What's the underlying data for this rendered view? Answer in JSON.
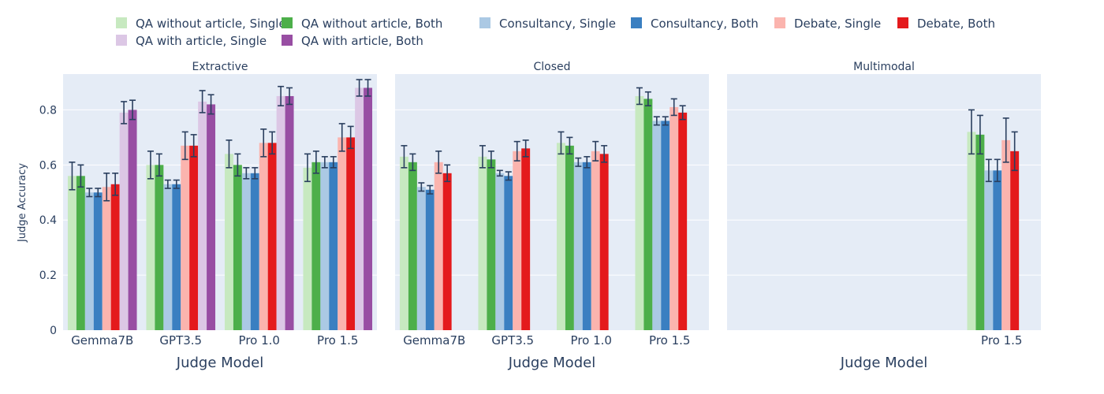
{
  "chart_data": {
    "type": "bar",
    "ylabel": "Judge Accuracy",
    "ylim": [
      0,
      0.93
    ],
    "yticks": [
      0,
      0.2,
      0.4,
      0.6,
      0.8
    ],
    "grid": true,
    "legend_position": "top",
    "series": [
      {
        "name": "QA without article, Single",
        "color": "#c7e9c0"
      },
      {
        "name": "QA without article, Both",
        "color": "#4daf4a"
      },
      {
        "name": "Consultancy, Single",
        "color": "#abc9e4"
      },
      {
        "name": "Consultancy, Both",
        "color": "#3a7fc1"
      },
      {
        "name": "Debate, Single",
        "color": "#fbb4ae"
      },
      {
        "name": "Debate, Both",
        "color": "#e41a1c"
      },
      {
        "name": "QA with article, Single",
        "color": "#dcc7e5"
      },
      {
        "name": "QA with article, Both",
        "color": "#984ea3"
      }
    ],
    "panels": [
      {
        "title": "Extractive",
        "xlabel": "Judge Model",
        "categories": [
          "Gemma7B",
          "GPT3.5",
          "Pro 1.0",
          "Pro 1.5"
        ],
        "values": [
          [
            0.56,
            0.6,
            0.64,
            0.59
          ],
          [
            0.56,
            0.6,
            0.6,
            0.61
          ],
          [
            0.5,
            0.53,
            0.57,
            0.61
          ],
          [
            0.5,
            0.53,
            0.57,
            0.61
          ],
          [
            0.52,
            0.67,
            0.68,
            0.7
          ],
          [
            0.53,
            0.67,
            0.68,
            0.7
          ],
          [
            0.79,
            0.83,
            0.85,
            0.88
          ],
          [
            0.8,
            0.82,
            0.85,
            0.88
          ]
        ],
        "errors": [
          [
            0.05,
            0.05,
            0.05,
            0.05
          ],
          [
            0.04,
            0.04,
            0.04,
            0.04
          ],
          [
            0.015,
            0.015,
            0.02,
            0.02
          ],
          [
            0.015,
            0.015,
            0.02,
            0.02
          ],
          [
            0.05,
            0.05,
            0.05,
            0.05
          ],
          [
            0.04,
            0.04,
            0.04,
            0.04
          ],
          [
            0.04,
            0.04,
            0.035,
            0.03
          ],
          [
            0.035,
            0.035,
            0.03,
            0.03
          ]
        ]
      },
      {
        "title": "Closed",
        "xlabel": "Judge Model",
        "categories": [
          "Gemma7B",
          "GPT3.5",
          "Pro 1.0",
          "Pro 1.5"
        ],
        "values": [
          [
            0.63,
            0.63,
            0.68,
            0.85
          ],
          [
            0.61,
            0.62,
            0.67,
            0.84
          ],
          [
            0.52,
            0.57,
            0.61,
            0.76
          ],
          [
            0.51,
            0.56,
            0.61,
            0.76
          ],
          [
            0.61,
            0.65,
            0.65,
            0.81
          ],
          [
            0.57,
            0.66,
            0.64,
            0.79
          ],
          [
            null,
            null,
            null,
            null
          ],
          [
            null,
            null,
            null,
            null
          ]
        ],
        "errors": [
          [
            0.04,
            0.04,
            0.04,
            0.03
          ],
          [
            0.03,
            0.03,
            0.03,
            0.025
          ],
          [
            0.015,
            0.01,
            0.015,
            0.015
          ],
          [
            0.015,
            0.015,
            0.02,
            0.015
          ],
          [
            0.04,
            0.035,
            0.035,
            0.03
          ],
          [
            0.03,
            0.03,
            0.03,
            0.025
          ],
          [
            null,
            null,
            null,
            null
          ],
          [
            null,
            null,
            null,
            null
          ]
        ]
      },
      {
        "title": "Multimodal",
        "xlabel": "Judge Model",
        "categories": [
          "Pro 1.5"
        ],
        "values": [
          [
            0.72
          ],
          [
            0.71
          ],
          [
            0.58
          ],
          [
            0.58
          ],
          [
            0.69
          ],
          [
            0.65
          ],
          [
            null
          ],
          [
            null
          ]
        ],
        "errors": [
          [
            0.08
          ],
          [
            0.07
          ],
          [
            0.04
          ],
          [
            0.04
          ],
          [
            0.08
          ],
          [
            0.07
          ],
          [
            null
          ],
          [
            null
          ]
        ]
      }
    ]
  }
}
